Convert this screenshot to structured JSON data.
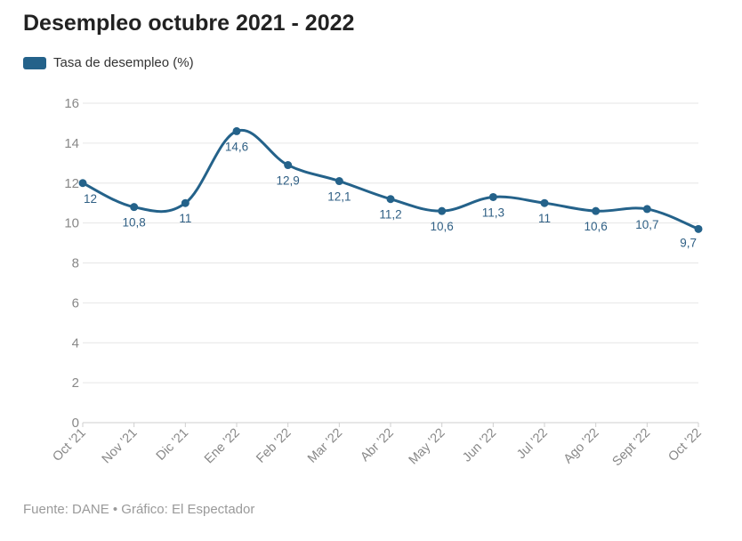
{
  "header": {
    "title": "Desempleo octubre 2021 - 2022"
  },
  "legend": {
    "label": "Tasa de desempleo (%)",
    "color": "#24628a"
  },
  "footer": {
    "source": "Fuente: DANE • Gráfico: El Espectador"
  },
  "chart_data": {
    "type": "line",
    "title": "Desempleo octubre 2021 - 2022",
    "xlabel": "",
    "ylabel": "",
    "ylim": [
      0,
      16
    ],
    "y_ticks": [
      0,
      2,
      4,
      6,
      8,
      10,
      12,
      14,
      16
    ],
    "grid": true,
    "legend_position": "top-left",
    "categories": [
      "Oct '21",
      "Nov '21",
      "Dic '21",
      "Ene '22",
      "Feb '22",
      "Mar '22",
      "Abr '22",
      "May '22",
      "Jun '22",
      "Jul '22",
      "Ago '22",
      "Sept '22",
      "Oct '22"
    ],
    "series": [
      {
        "name": "Tasa de desempleo (%)",
        "color": "#24628a",
        "values": [
          12,
          10.8,
          11,
          14.6,
          12.9,
          12.1,
          11.2,
          10.6,
          11.3,
          11,
          10.6,
          10.7,
          9.7
        ],
        "labels": [
          "12",
          "10,8",
          "11",
          "14,6",
          "12,9",
          "12,1",
          "11,2",
          "10,6",
          "11,3",
          "11",
          "10,6",
          "10,7",
          "9,7"
        ]
      }
    ]
  }
}
